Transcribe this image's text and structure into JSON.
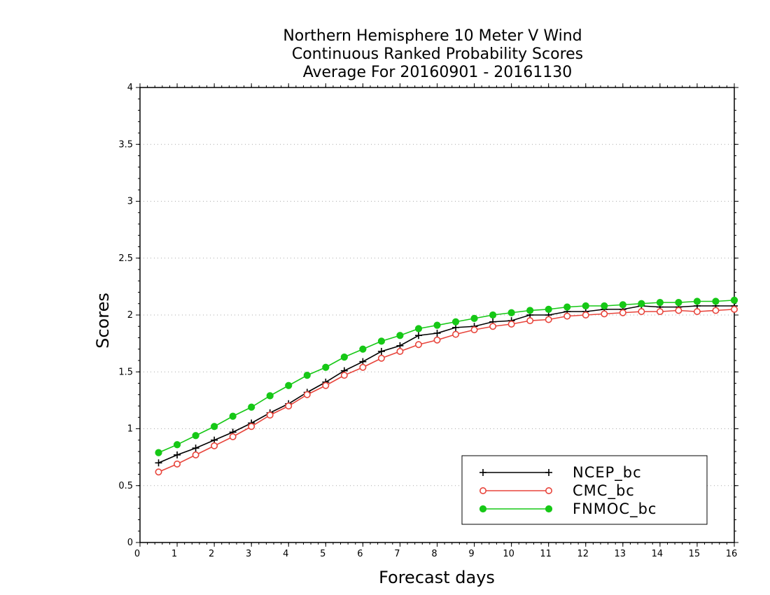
{
  "chart_data": {
    "type": "line",
    "title": [
      "Northern Hemisphere 10 Meter V Wind",
      "Continuous Ranked Probability Scores",
      "Average For 20160901 - 20161130"
    ],
    "xlabel": "Forecast days",
    "ylabel": "Scores",
    "xlim": [
      0,
      16
    ],
    "ylim": [
      0,
      4
    ],
    "x_ticks": [
      0,
      1,
      2,
      3,
      4,
      5,
      6,
      7,
      8,
      9,
      10,
      11,
      12,
      13,
      14,
      15,
      16
    ],
    "y_ticks": [
      0,
      0.5,
      1,
      1.5,
      2,
      2.5,
      3,
      3.5,
      4
    ],
    "y_tick_labels": [
      "0",
      "0.5",
      "1",
      "1.5",
      "2",
      "2.5",
      "3",
      "3.5",
      "4"
    ],
    "grid": "horizontal dotted",
    "legend_position": "bottom-right",
    "x": [
      0.5,
      1,
      1.5,
      2,
      2.5,
      3,
      3.5,
      4,
      4.5,
      5,
      5.5,
      6,
      6.5,
      7,
      7.5,
      8,
      8.5,
      9,
      9.5,
      10,
      10.5,
      11,
      11.5,
      12,
      12.5,
      13,
      13.5,
      14,
      14.5,
      15,
      15.5,
      16
    ],
    "series": [
      {
        "name": "NCEP_bc",
        "color": "#000000",
        "marker": "plus",
        "values": [
          0.7,
          0.77,
          0.83,
          0.9,
          0.97,
          1.05,
          1.14,
          1.22,
          1.32,
          1.41,
          1.51,
          1.59,
          1.68,
          1.73,
          1.82,
          1.84,
          1.89,
          1.9,
          1.94,
          1.95,
          2.0,
          2.0,
          2.03,
          2.03,
          2.05,
          2.05,
          2.08,
          2.07,
          2.07,
          2.08,
          2.08,
          2.08
        ]
      },
      {
        "name": "CMC_bc",
        "color": "#e8453c",
        "marker": "open-circle",
        "values": [
          0.62,
          0.69,
          0.77,
          0.85,
          0.93,
          1.02,
          1.12,
          1.2,
          1.3,
          1.38,
          1.47,
          1.54,
          1.62,
          1.68,
          1.74,
          1.78,
          1.83,
          1.87,
          1.9,
          1.92,
          1.95,
          1.96,
          1.99,
          2.0,
          2.01,
          2.02,
          2.03,
          2.03,
          2.04,
          2.03,
          2.04,
          2.05
        ]
      },
      {
        "name": "FNMOC_bc",
        "color": "#16c816",
        "marker": "filled-circle",
        "values": [
          0.79,
          0.86,
          0.94,
          1.02,
          1.11,
          1.19,
          1.29,
          1.38,
          1.47,
          1.54,
          1.63,
          1.7,
          1.77,
          1.82,
          1.88,
          1.91,
          1.94,
          1.97,
          2.0,
          2.02,
          2.04,
          2.05,
          2.07,
          2.08,
          2.08,
          2.09,
          2.1,
          2.11,
          2.11,
          2.12,
          2.12,
          2.13
        ]
      }
    ]
  }
}
